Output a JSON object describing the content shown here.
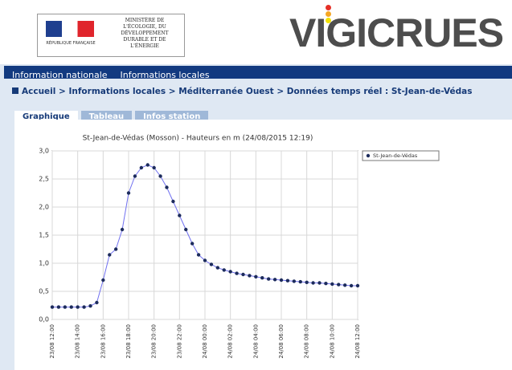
{
  "header": {
    "ministry": "MINISTÈRE DE L'ÉCOLOGIE, DU DÉVELOPPEMENT DURABLE ET DE L'ÉNERGIE",
    "republic": "RÉPUBLIQUE FRANÇAISE",
    "brand": "VIGICRUES"
  },
  "nav": [
    "Information nationale",
    "Informations locales"
  ],
  "breadcrumb": "Accueil > Informations locales > Méditerranée Ouest > Données temps réel : St-Jean-de-Védas",
  "tabs": [
    "Graphique",
    "Tableau",
    "Infos station"
  ],
  "chart_data": {
    "type": "line",
    "title": "St-Jean-de-Védas (Mosson) - Hauteurs en m (24/08/2015 12:19)",
    "categories": [
      "23/08 12:00",
      null,
      null,
      null,
      "23/08 14:00",
      null,
      null,
      null,
      "23/08 16:00",
      null,
      null,
      null,
      "23/08 18:00",
      null,
      null,
      null,
      "23/08 20:00",
      null,
      null,
      null,
      "23/08 22:00",
      null,
      null,
      null,
      "24/08 00:00",
      null,
      null,
      null,
      "24/08 02:00",
      null,
      null,
      null,
      "24/08 04:00",
      null,
      null,
      null,
      "24/08 06:00",
      null,
      null,
      null,
      "24/08 08:00",
      null,
      null,
      null,
      "24/08 10:00",
      null,
      null,
      null,
      "24/08 12:00"
    ],
    "series": [
      {
        "name": "St-Jean-de-Védas",
        "color": "#7070f0",
        "marker_color": "#1c2b5c",
        "values": [
          0.22,
          0.22,
          0.22,
          0.22,
          0.22,
          0.22,
          0.24,
          0.3,
          0.7,
          1.15,
          1.25,
          1.6,
          2.25,
          2.55,
          2.7,
          2.75,
          2.7,
          2.55,
          2.35,
          2.1,
          1.85,
          1.6,
          1.35,
          1.15,
          1.05,
          0.98,
          0.92,
          0.88,
          0.85,
          0.82,
          0.8,
          0.78,
          0.76,
          0.74,
          0.72,
          0.71,
          0.7,
          0.69,
          0.68,
          0.67,
          0.66,
          0.65,
          0.65,
          0.64,
          0.63,
          0.62,
          0.61,
          0.6,
          0.6
        ]
      }
    ],
    "ylim": [
      0,
      3
    ],
    "yticks": [
      {
        "value": 0,
        "label": "0,0"
      },
      {
        "value": 0.5,
        "label": "0,5"
      },
      {
        "value": 1,
        "label": "1,0"
      },
      {
        "value": 1.5,
        "label": "1,5"
      },
      {
        "value": 2,
        "label": "2,0"
      },
      {
        "value": 2.5,
        "label": "2,5"
      },
      {
        "value": 3,
        "label": "3,0"
      }
    ],
    "grid": true,
    "legend": "right"
  }
}
